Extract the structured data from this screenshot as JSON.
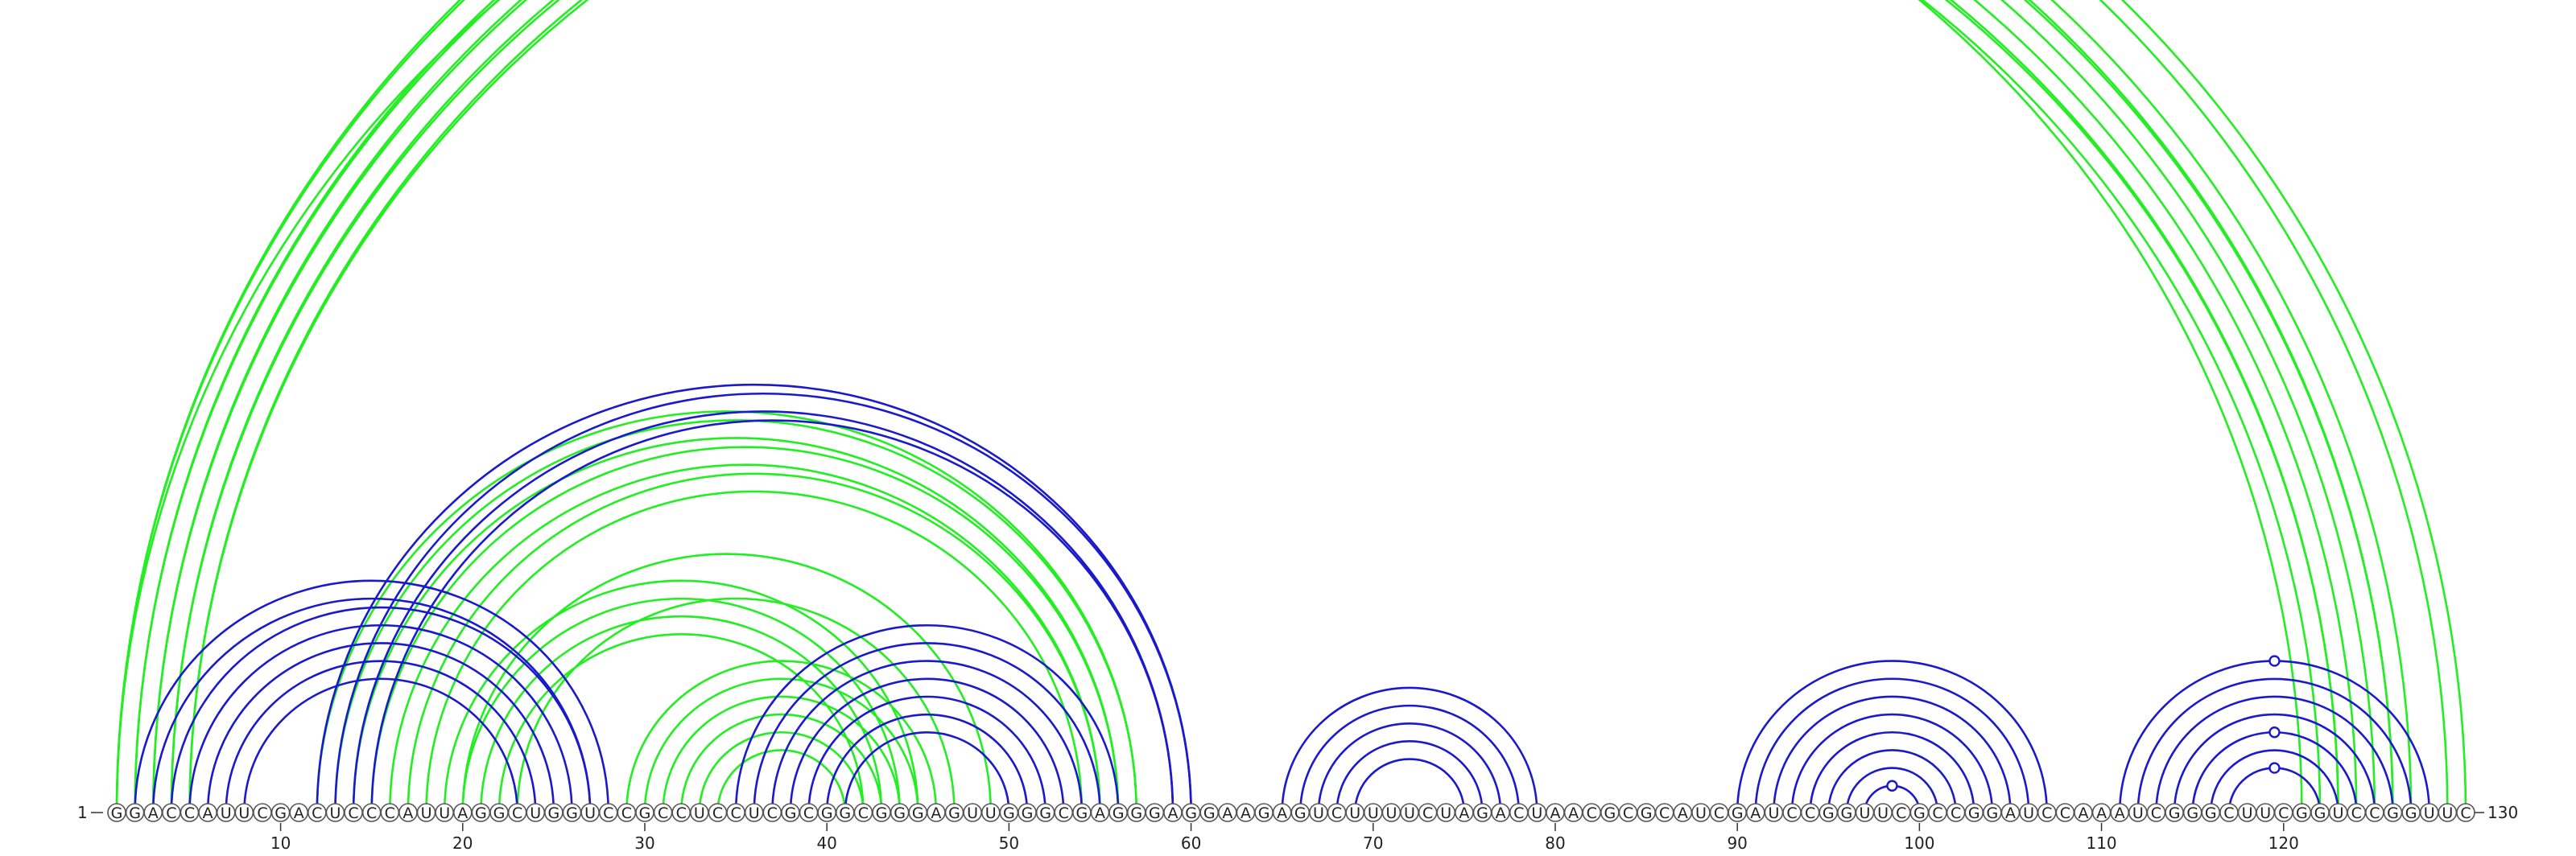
{
  "sequence": "GGACCAUUCGACUCCCAUUAGGCUGGUCCGCCUCCUCGCGGCGGGAGUUGGGCGAGGGAGGAAGAGUCUUUUCUAGACUAACGCGCAUCGAUCCGGUUCGCCGGAUCCAAAUCGGGCUUCGGUCCGGUUC",
  "labels": {
    "start": "1",
    "end": "130"
  },
  "ticks": [
    10,
    20,
    30,
    40,
    50,
    60,
    70,
    80,
    90,
    100,
    110,
    120
  ],
  "colors": {
    "upper": "#22ee22",
    "lower": "#1a1acc"
  },
  "structure_upper": [
    [
      1,
      130
    ],
    [
      1,
      129
    ],
    [
      2,
      127
    ],
    [
      2,
      126
    ],
    [
      3,
      126
    ],
    [
      3,
      125
    ],
    [
      4,
      124
    ],
    [
      4,
      123
    ],
    [
      5,
      123
    ],
    [
      5,
      122
    ],
    [
      1,
      121
    ],
    [
      12,
      57
    ],
    [
      13,
      57
    ],
    [
      14,
      56
    ],
    [
      15,
      56
    ],
    [
      16,
      55
    ],
    [
      17,
      55
    ],
    [
      18,
      54
    ],
    [
      20,
      49
    ],
    [
      29,
      46
    ],
    [
      30,
      45
    ],
    [
      31,
      44
    ],
    [
      32,
      43
    ],
    [
      33,
      42
    ],
    [
      34,
      41
    ],
    [
      19,
      45
    ],
    [
      20,
      44
    ],
    [
      21,
      43
    ],
    [
      22,
      42
    ],
    [
      23,
      47
    ]
  ],
  "structure_lower": [
    [
      2,
      28
    ],
    [
      3,
      27
    ],
    [
      4,
      27
    ],
    [
      5,
      26
    ],
    [
      6,
      25
    ],
    [
      7,
      24
    ],
    [
      8,
      23
    ],
    [
      12,
      60
    ],
    [
      13,
      60
    ],
    [
      14,
      59
    ],
    [
      15,
      59
    ],
    [
      35,
      56
    ],
    [
      36,
      55
    ],
    [
      37,
      54
    ],
    [
      38,
      53
    ],
    [
      39,
      52
    ],
    [
      40,
      51
    ],
    [
      41,
      50
    ],
    [
      65,
      79
    ],
    [
      66,
      78
    ],
    [
      67,
      77
    ],
    [
      68,
      76
    ],
    [
      69,
      75
    ],
    [
      90,
      107
    ],
    [
      91,
      106
    ],
    [
      92,
      105
    ],
    [
      93,
      104
    ],
    [
      94,
      103
    ],
    [
      95,
      102
    ],
    [
      96,
      101
    ],
    [
      97,
      100
    ],
    [
      111,
      128
    ],
    [
      112,
      127
    ],
    [
      113,
      126
    ],
    [
      114,
      125
    ],
    [
      115,
      124
    ],
    [
      116,
      123
    ],
    [
      117,
      122
    ]
  ],
  "markers": [
    {
      "i": 1,
      "j": 130,
      "set": "upper"
    },
    {
      "i": 97,
      "j": 100,
      "set": "lower"
    },
    {
      "i": 111,
      "j": 128,
      "set": "lower"
    },
    {
      "i": 115,
      "j": 124,
      "set": "lower"
    },
    {
      "i": 117,
      "j": 122,
      "set": "lower"
    }
  ]
}
